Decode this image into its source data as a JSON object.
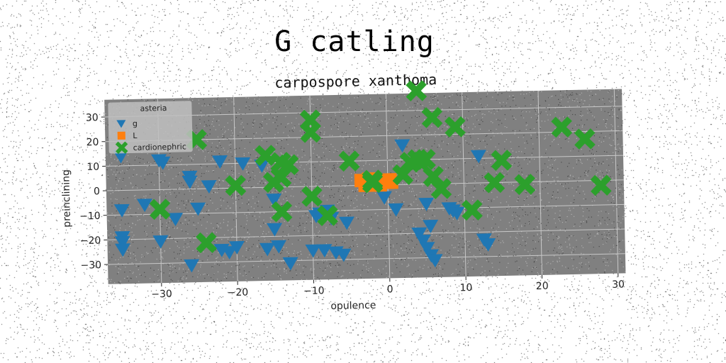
{
  "suptitle": "G catling",
  "colors": {
    "background": "#ffffff",
    "plot_bg": "#808080",
    "grid": "#c8c8c8",
    "g": "#1f77b4",
    "L": "#ff7f0e",
    "cardionephric": "#2ca02c",
    "legend_bg": "#bfbfbf"
  },
  "chart_data": {
    "type": "scatter",
    "title": "carpospore xanthoma",
    "xlabel": "opulence",
    "ylabel": "preinclining",
    "xlim": [
      -37,
      31
    ],
    "ylim": [
      -38,
      37
    ],
    "xticks": [
      -30,
      -20,
      -10,
      0,
      10,
      20,
      30
    ],
    "xtick_labels": [
      "−30",
      "−20",
      "−10",
      "0",
      "10",
      "20",
      "30"
    ],
    "yticks": [
      -30,
      -20,
      -10,
      0,
      10,
      20,
      30
    ],
    "ytick_labels": [
      "−30",
      "−20",
      "−10",
      "0",
      "10",
      "20",
      "30"
    ],
    "grid": true,
    "legend": {
      "title": "asteria",
      "position": "top-left",
      "entries": [
        "g",
        "L",
        "cardionephric"
      ]
    },
    "series": [
      {
        "name": "g",
        "marker": "triangle-down",
        "points": [
          [
            -35,
            14
          ],
          [
            -30,
            12
          ],
          [
            -29.5,
            11
          ],
          [
            -26,
            5
          ],
          [
            -26,
            3
          ],
          [
            -23.5,
            1
          ],
          [
            -22,
            11
          ],
          [
            -19,
            10
          ],
          [
            -16.5,
            9
          ],
          [
            -15,
            -5
          ],
          [
            -15,
            -17
          ],
          [
            -16,
            -25
          ],
          [
            -14.5,
            -24
          ],
          [
            -13,
            -31
          ],
          [
            -9.5,
            -12
          ],
          [
            -9,
            -11
          ],
          [
            -8,
            -10
          ],
          [
            -7.5,
            -13
          ],
          [
            -5.5,
            -15
          ],
          [
            -10,
            -26
          ],
          [
            -8.5,
            -26
          ],
          [
            -7,
            -27
          ],
          [
            -6,
            -28
          ],
          [
            -35,
            -8
          ],
          [
            -32,
            -6
          ],
          [
            -28,
            -12
          ],
          [
            -25,
            -8
          ],
          [
            -35,
            -19
          ],
          [
            -35,
            -21
          ],
          [
            -35,
            -24
          ],
          [
            -30,
            -21
          ],
          [
            -26,
            -31
          ],
          [
            -21,
            -26
          ],
          [
            -20,
            -24
          ],
          [
            -22,
            -25
          ],
          [
            -0.5,
            -5
          ],
          [
            1,
            -10
          ],
          [
            2,
            16
          ],
          [
            4,
            -20
          ],
          [
            4.5,
            -23
          ],
          [
            5,
            -8
          ],
          [
            5.5,
            -17
          ],
          [
            5,
            -26
          ],
          [
            5.5,
            -29
          ],
          [
            6,
            -31
          ],
          [
            8,
            -10
          ],
          [
            8.5,
            -11
          ],
          [
            9,
            -12
          ],
          [
            12,
            11
          ],
          [
            12.5,
            -23
          ],
          [
            13,
            -25
          ]
        ]
      },
      {
        "name": "L",
        "marker": "square",
        "points": [
          [
            -3.5,
            2
          ],
          [
            -2.5,
            1
          ],
          [
            -1.5,
            1
          ],
          [
            -0.5,
            2
          ],
          [
            0.5,
            1
          ],
          [
            -3,
            0
          ],
          [
            -2,
            0
          ],
          [
            -1,
            0
          ],
          [
            0,
            1
          ],
          [
            0.3,
            2
          ],
          [
            -2.5,
            2.5
          ]
        ]
      },
      {
        "name": "cardionephric",
        "marker": "x",
        "points": [
          [
            4,
            38
          ],
          [
            6,
            27
          ],
          [
            9,
            23
          ],
          [
            -10,
            27
          ],
          [
            -10,
            22
          ],
          [
            -25,
            20
          ],
          [
            -16,
            13
          ],
          [
            -14,
            10
          ],
          [
            -13,
            9
          ],
          [
            -14,
            4
          ],
          [
            -15,
            2
          ],
          [
            -20,
            1
          ],
          [
            -30,
            -8
          ],
          [
            -10,
            -4
          ],
          [
            -14,
            -10
          ],
          [
            -8,
            -12
          ],
          [
            -24,
            -22
          ],
          [
            -5,
            10
          ],
          [
            -2,
            2
          ],
          [
            -2,
            1
          ],
          [
            2,
            4
          ],
          [
            3,
            9
          ],
          [
            4,
            10
          ],
          [
            5,
            10
          ],
          [
            6,
            3
          ],
          [
            7,
            -2
          ],
          [
            15,
            9
          ],
          [
            14,
            0
          ],
          [
            18,
            -1
          ],
          [
            23,
            22
          ],
          [
            26,
            17
          ],
          [
            28,
            -2
          ],
          [
            11,
            -11
          ]
        ]
      }
    ]
  }
}
